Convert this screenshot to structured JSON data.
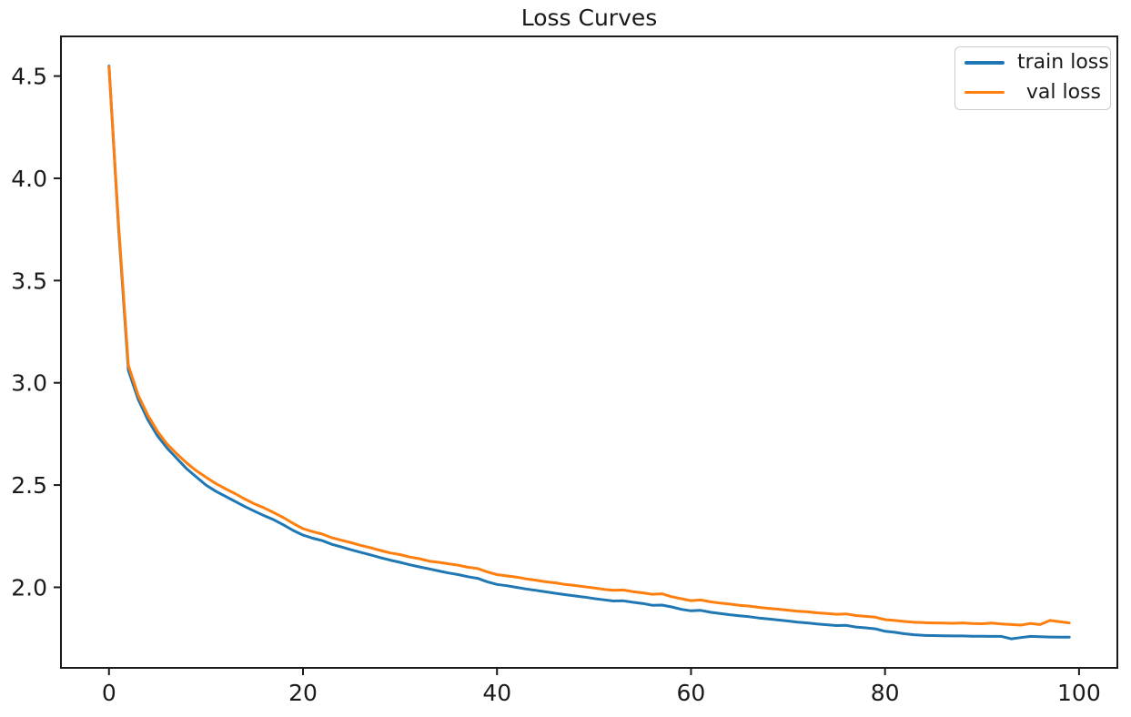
{
  "figure": {
    "background": "#ffffff",
    "text_color": "#1a1a1a",
    "spine_color": "#1a1a1a"
  },
  "chart_data": {
    "type": "line",
    "title": "Loss Curves",
    "xlabel": "",
    "ylabel": "",
    "grid": false,
    "legend_position": "upper right",
    "xlim": [
      -4.95,
      103.95
    ],
    "ylim": [
      1.606,
      4.694
    ],
    "xtick_labels": [
      "0",
      "20",
      "40",
      "60",
      "80",
      "100"
    ],
    "xticks": [
      0,
      20,
      40,
      60,
      80,
      100
    ],
    "ytick_labels": [
      "2.0",
      "2.5",
      "3.0",
      "3.5",
      "4.0",
      "4.5"
    ],
    "yticks": [
      2.0,
      2.5,
      3.0,
      3.5,
      4.0,
      4.5
    ],
    "x": [
      0,
      1,
      2,
      3,
      4,
      5,
      6,
      7,
      8,
      9,
      10,
      11,
      12,
      13,
      14,
      15,
      16,
      17,
      18,
      19,
      20,
      21,
      22,
      23,
      24,
      25,
      26,
      27,
      28,
      29,
      30,
      31,
      32,
      33,
      34,
      35,
      36,
      37,
      38,
      39,
      40,
      41,
      42,
      43,
      44,
      45,
      46,
      47,
      48,
      49,
      50,
      51,
      52,
      53,
      54,
      55,
      56,
      57,
      58,
      59,
      60,
      61,
      62,
      63,
      64,
      65,
      66,
      67,
      68,
      69,
      70,
      71,
      72,
      73,
      74,
      75,
      76,
      77,
      78,
      79,
      80,
      81,
      82,
      83,
      84,
      85,
      86,
      87,
      88,
      89,
      90,
      91,
      92,
      93,
      94,
      95,
      96,
      97,
      98,
      99
    ],
    "series": [
      {
        "name": "train loss",
        "color": "#1f77b4",
        "values": [
          4.549,
          3.75,
          3.06,
          2.92,
          2.82,
          2.74,
          2.68,
          2.63,
          2.58,
          2.54,
          2.5,
          2.47,
          2.445,
          2.42,
          2.395,
          2.372,
          2.35,
          2.33,
          2.305,
          2.278,
          2.255,
          2.24,
          2.228,
          2.21,
          2.197,
          2.183,
          2.17,
          2.158,
          2.145,
          2.133,
          2.122,
          2.11,
          2.1,
          2.09,
          2.08,
          2.07,
          2.062,
          2.052,
          2.044,
          2.027,
          2.014,
          2.008,
          2.0,
          1.992,
          1.985,
          1.978,
          1.971,
          1.964,
          1.958,
          1.952,
          1.945,
          1.939,
          1.933,
          1.934,
          1.927,
          1.921,
          1.912,
          1.913,
          1.904,
          1.892,
          1.885,
          1.887,
          1.878,
          1.872,
          1.866,
          1.861,
          1.856,
          1.85,
          1.845,
          1.84,
          1.835,
          1.83,
          1.826,
          1.821,
          1.817,
          1.813,
          1.814,
          1.806,
          1.802,
          1.797,
          1.785,
          1.78,
          1.773,
          1.768,
          1.765,
          1.764,
          1.763,
          1.762,
          1.762,
          1.761,
          1.761,
          1.76,
          1.76,
          1.748,
          1.754,
          1.76,
          1.758,
          1.757,
          1.756,
          1.756
        ]
      },
      {
        "name": "val loss",
        "color": "#ff7f0e",
        "values": [
          4.545,
          3.768,
          3.085,
          2.94,
          2.842,
          2.762,
          2.7,
          2.652,
          2.608,
          2.57,
          2.538,
          2.508,
          2.482,
          2.458,
          2.432,
          2.408,
          2.388,
          2.365,
          2.34,
          2.312,
          2.287,
          2.272,
          2.26,
          2.242,
          2.23,
          2.218,
          2.204,
          2.193,
          2.18,
          2.168,
          2.16,
          2.148,
          2.14,
          2.128,
          2.122,
          2.115,
          2.108,
          2.098,
          2.092,
          2.075,
          2.062,
          2.056,
          2.05,
          2.041,
          2.035,
          2.027,
          2.022,
          2.014,
          2.009,
          2.003,
          1.997,
          1.99,
          1.985,
          1.987,
          1.979,
          1.973,
          1.966,
          1.968,
          1.954,
          1.944,
          1.935,
          1.938,
          1.929,
          1.923,
          1.918,
          1.912,
          1.908,
          1.902,
          1.897,
          1.893,
          1.888,
          1.883,
          1.88,
          1.875,
          1.872,
          1.868,
          1.87,
          1.862,
          1.858,
          1.854,
          1.842,
          1.838,
          1.833,
          1.829,
          1.827,
          1.826,
          1.825,
          1.824,
          1.826,
          1.823,
          1.822,
          1.825,
          1.821,
          1.818,
          1.815,
          1.823,
          1.818,
          1.838,
          1.832,
          1.826
        ]
      }
    ]
  }
}
